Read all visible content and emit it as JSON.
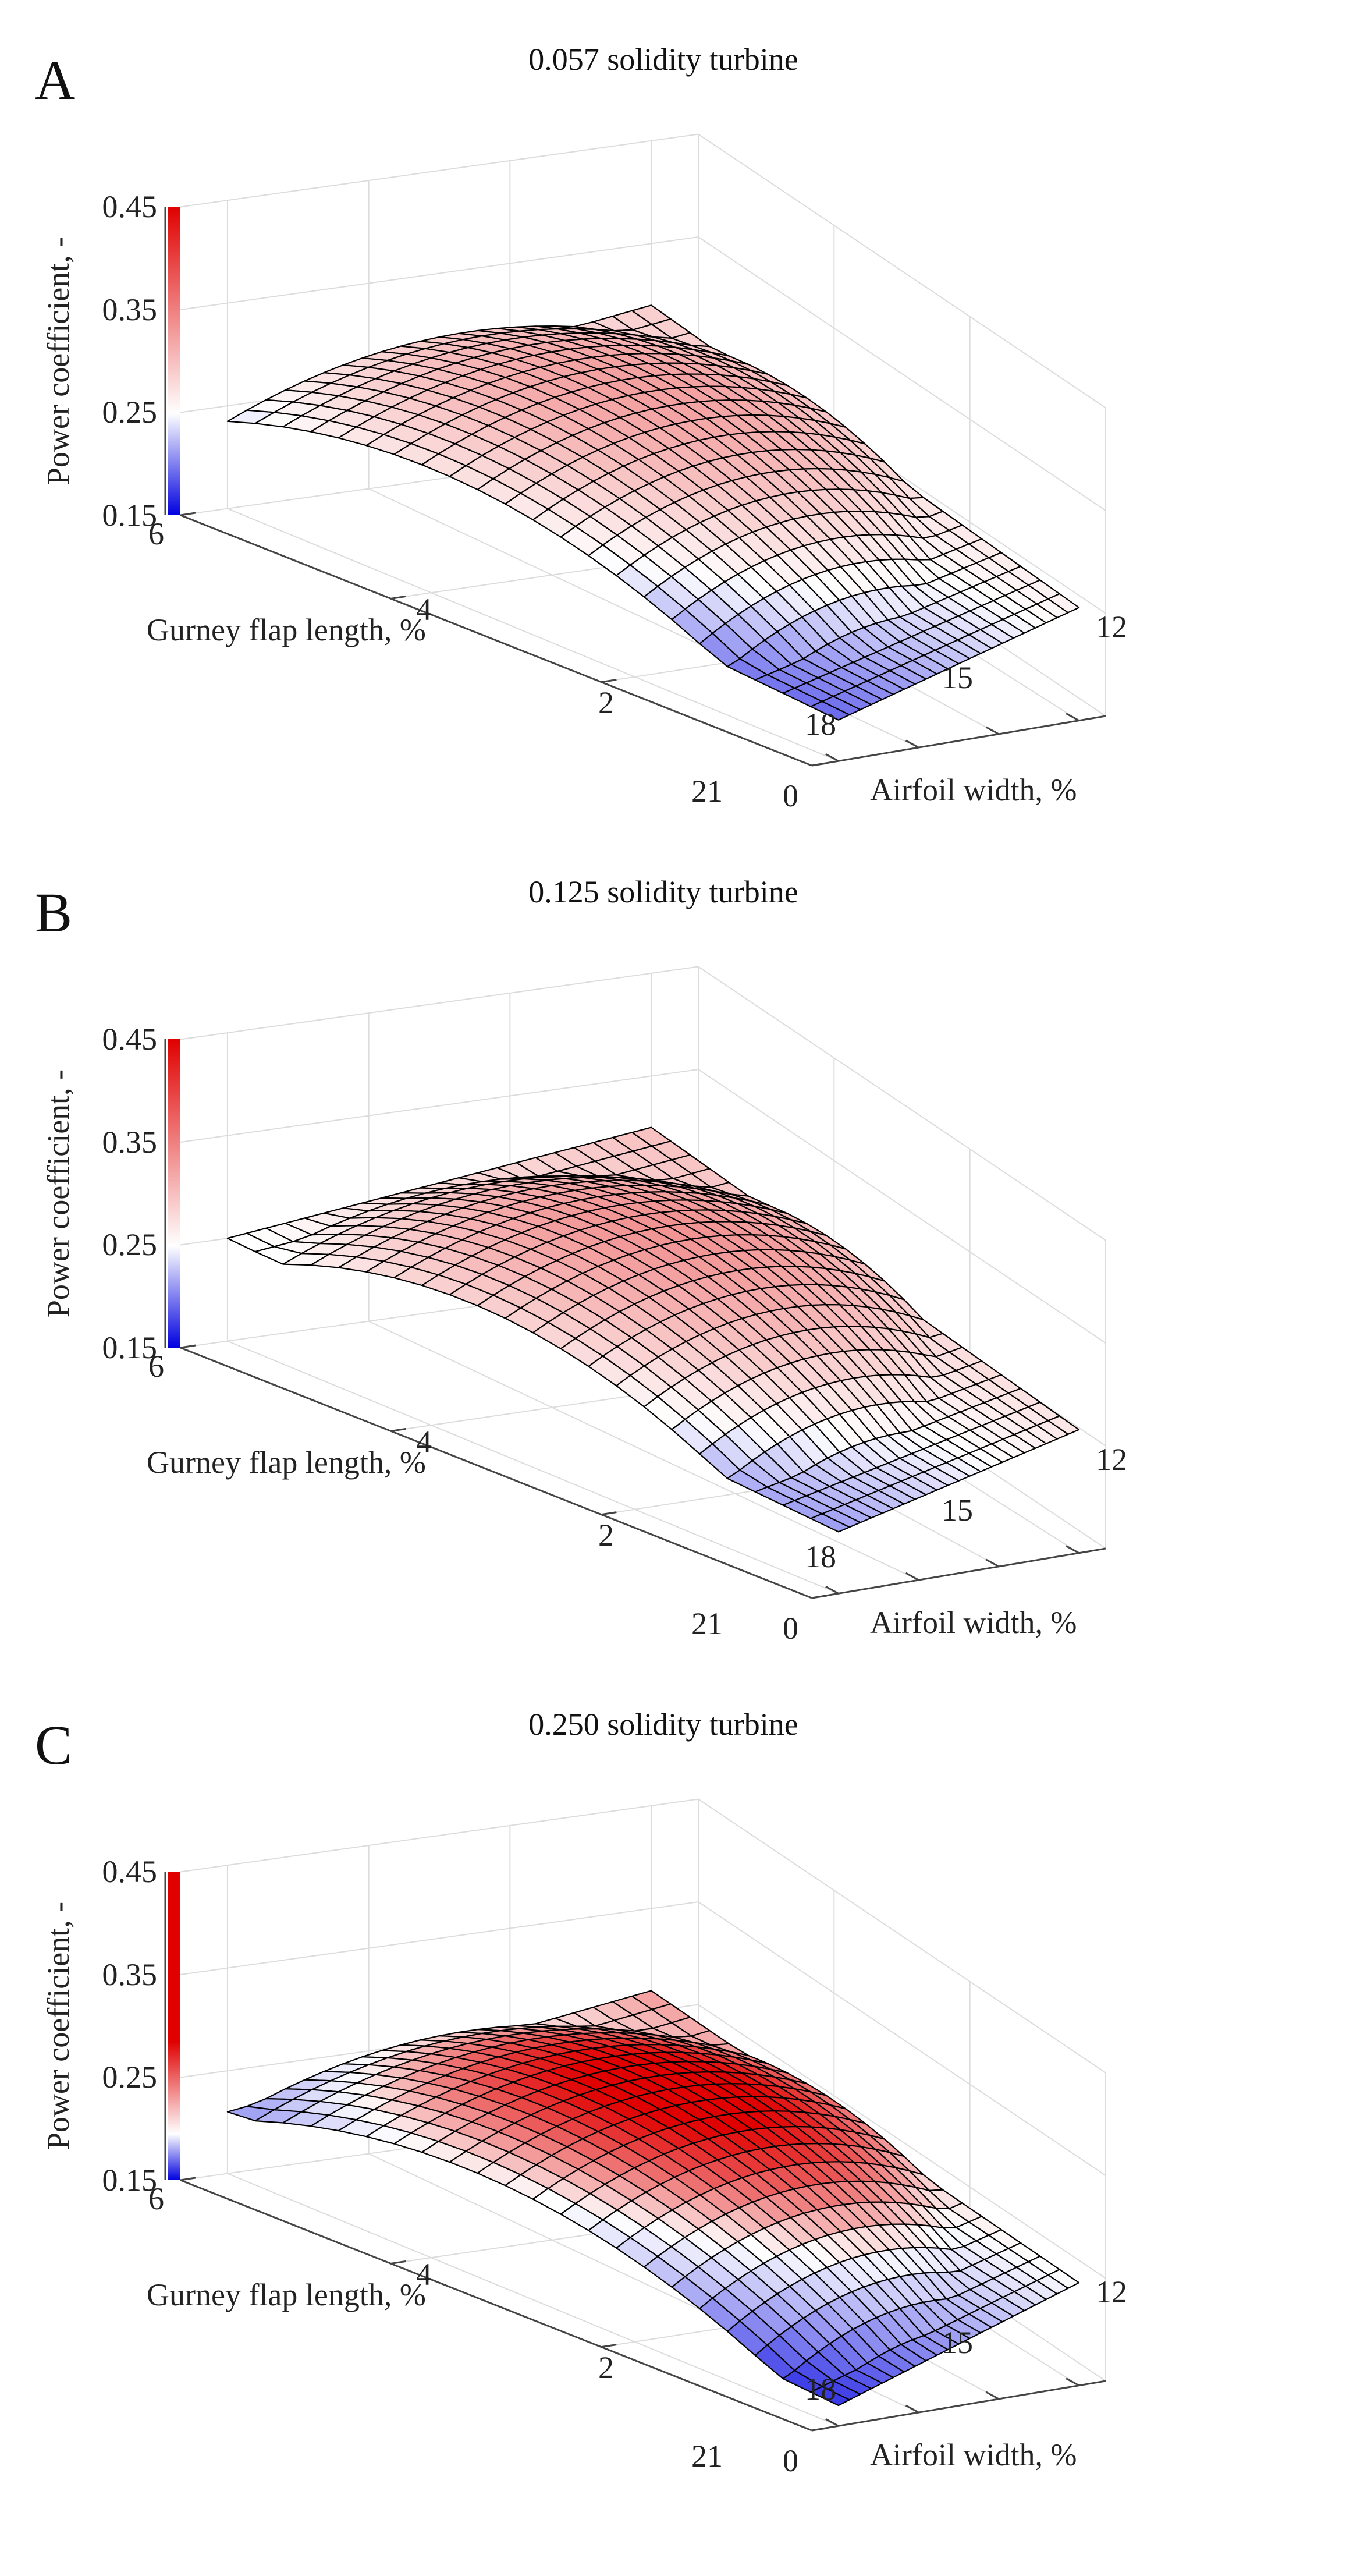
{
  "figure": {
    "panels": [
      "A",
      "B",
      "C"
    ]
  },
  "chart_data": [
    {
      "type": "surface",
      "panel": "A",
      "title": "0.057 solidity turbine",
      "xlabel": "Airfoil width, %",
      "ylabel": "Gurney flap length, %",
      "zlabel": "Power coefficient, -",
      "x_ticks": [
        "12",
        "15",
        "18",
        "21"
      ],
      "y_ticks": [
        "0",
        "2",
        "4",
        "6"
      ],
      "z_ticks": [
        "0.15",
        "0.25",
        "0.35",
        "0.45"
      ],
      "xlim": [
        11,
        22
      ],
      "ylim": [
        0,
        6
      ],
      "zlim": [
        0.15,
        0.45
      ],
      "surface_model": {
        "peak": 0.325,
        "x_peak": 15.8,
        "y_peak": 4.0,
        "x_curv": 0.002,
        "y_curv": 0.009,
        "corner_y0_x21": 0.19,
        "corner_y6_x21": 0.23,
        "corner_y6_x12": 0.29,
        "corner_y0_x12": 0.26
      },
      "colorbar": {
        "range": [
          0.15,
          0.45
        ],
        "colors": [
          "#0000e0",
          "#ffffff",
          "#e00000"
        ]
      }
    },
    {
      "type": "surface",
      "panel": "B",
      "title": "0.125 solidity turbine",
      "xlabel": "Airfoil width, %",
      "ylabel": "Gurney flap length, %",
      "zlabel": "Power coefficient, -",
      "x_ticks": [
        "12",
        "15",
        "18",
        "21"
      ],
      "y_ticks": [
        "0",
        "2",
        "4",
        "6"
      ],
      "z_ticks": [
        "0.15",
        "0.25",
        "0.35",
        "0.45"
      ],
      "xlim": [
        11,
        22
      ],
      "ylim": [
        0,
        6
      ],
      "zlim": [
        0.15,
        0.45
      ],
      "surface_model": {
        "peak": 0.335,
        "x_peak": 16.0,
        "y_peak": 3.6,
        "x_curv": 0.002,
        "y_curv": 0.011,
        "corner_y0_x21": 0.21,
        "corner_y6_x21": 0.25,
        "corner_y6_x12": 0.3,
        "corner_y0_x12": 0.27
      },
      "colorbar": {
        "range": [
          0.15,
          0.45
        ],
        "colors": [
          "#0000e0",
          "#ffffff",
          "#e00000"
        ]
      }
    },
    {
      "type": "surface",
      "panel": "C",
      "title": "0.250 solidity turbine",
      "xlabel": "Airfoil width, %",
      "ylabel": "Gurney flap length, %",
      "zlabel": "Power coefficient, -",
      "x_ticks": [
        "12",
        "15",
        "18",
        "21"
      ],
      "y_ticks": [
        "0",
        "2",
        "4",
        "6"
      ],
      "z_ticks": [
        "0.15",
        "0.25",
        "0.35",
        "0.45"
      ],
      "xlim": [
        11,
        22
      ],
      "ylim": [
        0,
        6
      ],
      "zlim": [
        0.15,
        0.45
      ],
      "surface_model": {
        "peak": 0.305,
        "x_peak": 15.8,
        "y_peak": 3.6,
        "x_curv": 0.002,
        "y_curv": 0.0085,
        "corner_y0_x21": 0.17,
        "corner_y6_x21": 0.21,
        "corner_y6_x12": 0.27,
        "corner_y0_x12": 0.25
      },
      "colorbar": {
        "range": [
          0.15,
          0.3
        ],
        "colors": [
          "#0000e0",
          "#ffffff",
          "#e00000"
        ]
      }
    }
  ]
}
